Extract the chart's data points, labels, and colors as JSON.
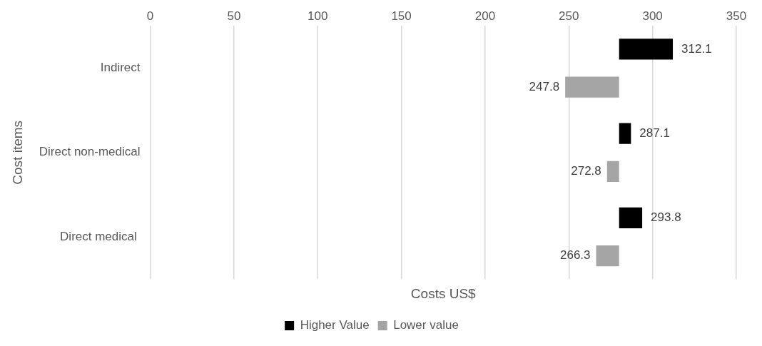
{
  "chart_data": {
    "type": "bar",
    "orientation": "horizontal",
    "xlabel": "Costs US$",
    "ylabel": "Cost items",
    "categories": [
      "Indirect",
      "Direct non-medical",
      "Direct medical "
    ],
    "series": [
      {
        "name": "Higher Value",
        "color": "#000000",
        "base": [
          280,
          280,
          280
        ],
        "values": [
          32.1,
          7.1,
          13.8
        ],
        "value_labels": [
          "312.1",
          "287.1",
          "293.8"
        ]
      },
      {
        "name": "Lower value",
        "color": "#a5a5a5",
        "base": [
          280,
          280,
          280
        ],
        "values": [
          -32.2,
          -7.2,
          -13.7
        ],
        "value_labels": [
          "247.8",
          "272.8",
          "266.3"
        ]
      }
    ],
    "xlim": [
      0,
      350
    ],
    "xticks": [
      0,
      50,
      100,
      150,
      200,
      250,
      300,
      350
    ],
    "grid": "x",
    "legend": "bottom"
  }
}
